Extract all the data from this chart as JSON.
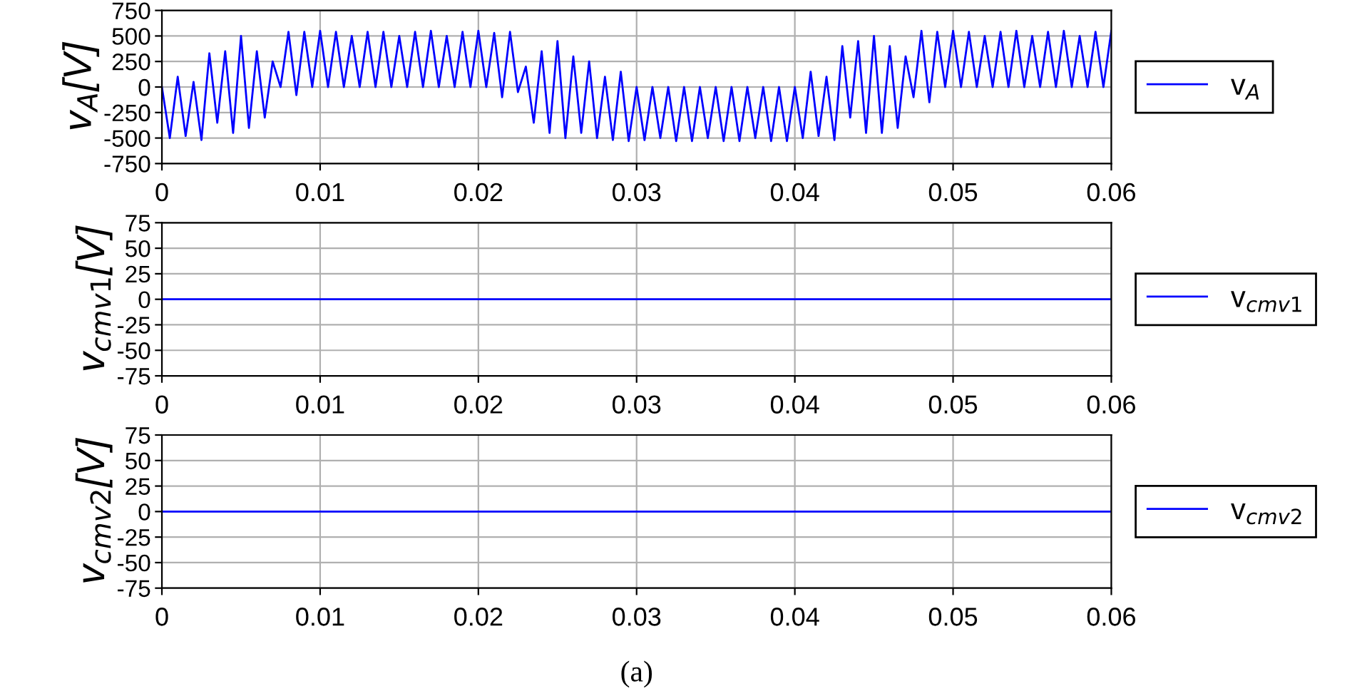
{
  "chart_data": [
    {
      "type": "line",
      "ylabel": "v$_{A}$[V]",
      "legend": "right",
      "grid": true,
      "x": [
        0,
        0.0005,
        0.001,
        0.0015,
        0.002,
        0.0025,
        0.003,
        0.0035,
        0.004,
        0.0045,
        0.005,
        0.0055,
        0.006,
        0.0065,
        0.007,
        0.0075,
        0.008,
        0.0085,
        0.009,
        0.0095,
        0.01,
        0.0105,
        0.011,
        0.0115,
        0.012,
        0.0125,
        0.013,
        0.0135,
        0.014,
        0.0145,
        0.015,
        0.0155,
        0.016,
        0.0165,
        0.017,
        0.0175,
        0.018,
        0.0185,
        0.019,
        0.0195,
        0.02,
        0.0205,
        0.021,
        0.0215,
        0.022,
        0.0225,
        0.023,
        0.0235,
        0.024,
        0.0245,
        0.025,
        0.0255,
        0.026,
        0.0265,
        0.027,
        0.0275,
        0.028,
        0.0285,
        0.029,
        0.0295,
        0.03,
        0.0305,
        0.031,
        0.0315,
        0.032,
        0.0325,
        0.033,
        0.0335,
        0.034,
        0.0345,
        0.035,
        0.0355,
        0.036,
        0.0365,
        0.037,
        0.0375,
        0.038,
        0.0385,
        0.039,
        0.0395,
        0.04,
        0.0405,
        0.041,
        0.0415,
        0.042,
        0.0425,
        0.043,
        0.0435,
        0.044,
        0.0445,
        0.045,
        0.0455,
        0.046,
        0.0465,
        0.047,
        0.0475,
        0.048,
        0.0485,
        0.049,
        0.0495,
        0.05,
        0.0505,
        0.051,
        0.0515,
        0.052,
        0.0525,
        0.053,
        0.0535,
        0.054,
        0.0545,
        0.055,
        0.0555,
        0.056,
        0.0565,
        0.057,
        0.0575,
        0.058,
        0.0585,
        0.059,
        0.0595,
        0.06
      ],
      "series": [
        {
          "name": "v$_{A}$",
          "color": "#0000ff",
          "values": [
            0,
            -500,
            100,
            -480,
            50,
            -520,
            330,
            -350,
            350,
            -450,
            500,
            -400,
            350,
            -300,
            250,
            0,
            540,
            -80,
            540,
            0,
            550,
            0,
            540,
            0,
            500,
            0,
            540,
            0,
            540,
            0,
            500,
            0,
            540,
            0,
            550,
            0,
            500,
            0,
            540,
            0,
            550,
            0,
            530,
            -100,
            540,
            -50,
            200,
            -350,
            350,
            -450,
            450,
            -500,
            300,
            -450,
            250,
            -500,
            100,
            -520,
            150,
            -530,
            0,
            -520,
            0,
            -500,
            0,
            -530,
            0,
            -530,
            0,
            -500,
            0,
            -530,
            0,
            -530,
            0,
            -500,
            0,
            -530,
            0,
            -530,
            0,
            -500,
            150,
            -480,
            100,
            -520,
            400,
            -300,
            450,
            -450,
            500,
            -450,
            400,
            -400,
            300,
            -100,
            550,
            -150,
            540,
            0,
            550,
            0,
            540,
            0,
            500,
            0,
            540,
            0,
            550,
            0,
            500,
            0,
            540,
            0,
            550,
            0,
            500,
            0,
            540,
            0,
            550
          ]
        }
      ],
      "xlim": [
        0,
        0.06
      ],
      "xticks": [
        0,
        0.01,
        0.02,
        0.03,
        0.04,
        0.05,
        0.06
      ],
      "ylim": [
        -750,
        750
      ],
      "yticks": [
        -750,
        -500,
        -250,
        0,
        250,
        500,
        750
      ]
    },
    {
      "type": "line",
      "ylabel": "v$_{cmv1}$[V]",
      "legend": "right",
      "grid": true,
      "x": [
        0,
        0.06
      ],
      "series": [
        {
          "name": "v$_{cmv1}$",
          "color": "#0000ff",
          "values": [
            0,
            0
          ]
        }
      ],
      "xlim": [
        0,
        0.06
      ],
      "xticks": [
        0,
        0.01,
        0.02,
        0.03,
        0.04,
        0.05,
        0.06
      ],
      "ylim": [
        -75,
        75
      ],
      "yticks": [
        -75,
        -50,
        -25,
        0,
        25,
        50,
        75
      ]
    },
    {
      "type": "line",
      "ylabel": "v$_{cmv2}$[V]",
      "legend": "right",
      "grid": true,
      "x": [
        0,
        0.06
      ],
      "series": [
        {
          "name": "v$_{cmv2}$",
          "color": "#0000ff",
          "values": [
            0,
            0
          ]
        }
      ],
      "xlim": [
        0,
        0.06
      ],
      "xticks": [
        0,
        0.01,
        0.02,
        0.03,
        0.04,
        0.05,
        0.06
      ],
      "ylim": [
        -75,
        75
      ],
      "yticks": [
        -75,
        -50,
        -25,
        0,
        25,
        50,
        75
      ],
      "annotations": [
        "(a)"
      ]
    }
  ]
}
